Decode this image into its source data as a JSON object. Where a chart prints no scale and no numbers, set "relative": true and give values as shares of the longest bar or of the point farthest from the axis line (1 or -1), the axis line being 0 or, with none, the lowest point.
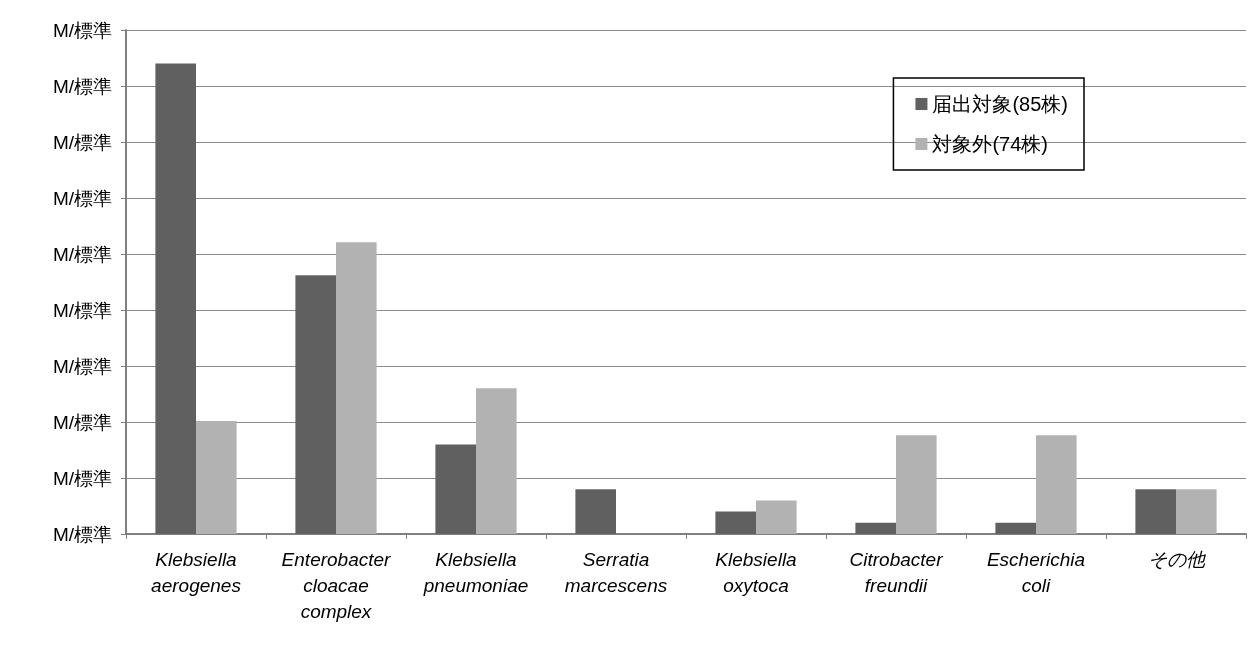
{
  "chart_data": {
    "type": "bar",
    "relative": true,
    "categories": [
      "Klebsiella\naerogenes",
      "Enterobacter\ncloacae\ncomplex",
      "Klebsiella\npneumoniae",
      "Serratia\nmarcescens",
      "Klebsiella\noxytoca",
      "Citrobacter\nfreundii",
      "Escherichia\ncoli",
      "その他"
    ],
    "series": [
      {
        "name": "届出対象(85株)",
        "color": "#606060",
        "values": [
          1,
          0.55,
          0.19,
          0.095,
          0.048,
          0.024,
          0.024,
          0.095
        ]
      },
      {
        "name": "対象外(74株)",
        "color": "#b2b2b2",
        "values": [
          0.24,
          0.62,
          0.31,
          0,
          0.071,
          0.21,
          0.21,
          0.095
        ]
      }
    ],
    "annotations": [
      "M/標準",
      "M/標準",
      "M/標準",
      "M/標準",
      "M/標準",
      "M/標準",
      "M/標準",
      "M/標準",
      "M/標準",
      "M/標準"
    ],
    "grid": "y",
    "legend": "top right"
  }
}
